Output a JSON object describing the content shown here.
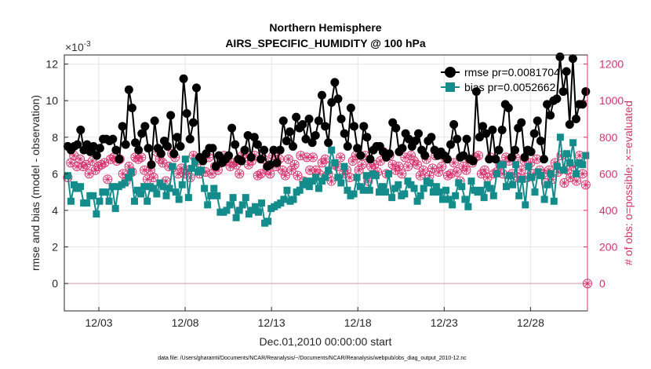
{
  "chart_data": {
    "type": "line",
    "title": "Northern Hemisphere",
    "subtitle": "AIRS_SPECIFIC_HUMIDITY @ 100 hPa",
    "xlabel": "Dec.01,2010 00:00:00 start",
    "ylabel_left": "rmse and bias (model - observation)",
    "ylabel_right": "# of obs: o=possible; ×=evaluated",
    "y_exponent_label": "×10",
    "y_exponent_power": "-3",
    "footer": "data file: /Users/gharamti/Documents/NCAR/Reanalysis/~/Documents/NCAR/Reanalysis/webpub/obs_diag_output_2010-12.nc",
    "x_tick_labels": [
      "12/03",
      "12/08",
      "12/13",
      "12/18",
      "12/23",
      "12/28"
    ],
    "x_tick_days": [
      3,
      8,
      13,
      18,
      23,
      28
    ],
    "xlim_days": [
      1.0,
      31.3
    ],
    "y_left_ticks": [
      "0",
      "2",
      "4",
      "6",
      "8",
      "10",
      "12"
    ],
    "y_left_tick_values": [
      0,
      2,
      4,
      6,
      8,
      10,
      12
    ],
    "ylim_left": [
      -1.5,
      12.5
    ],
    "y_right_ticks": [
      "0",
      "200",
      "400",
      "600",
      "800",
      "1000",
      "1200"
    ],
    "y_right_tick_values": [
      0,
      200,
      400,
      600,
      800,
      1000,
      1200
    ],
    "ylim_right": [
      -150,
      1250
    ],
    "legend_location": "top-right",
    "colors": {
      "rmse": "#000000",
      "bias": "#148c8c",
      "obs": "#d6336c",
      "zero_line": "#d0a5ad",
      "right_axis": "#d6336c"
    },
    "legend": [
      {
        "key": "rmse",
        "label": "rmse pr=0.0081704"
      },
      {
        "key": "bias",
        "label": "bias pr=0.0052662"
      }
    ],
    "series": [
      {
        "name": "rmse",
        "units": "x1e-3",
        "values": [
          7.5,
          7.3,
          7.5,
          7.6,
          8.4,
          7.3,
          7.6,
          7.2,
          7.5,
          7.0,
          7.4,
          7.9,
          7.9,
          7.8,
          7.9,
          7.3,
          6.8,
          8.6,
          7.6,
          10.6,
          9.6,
          7.7,
          7.3,
          8.2,
          8.6,
          7.4,
          6.5,
          8.9,
          7.4,
          7.1,
          7.8,
          7.5,
          9.2,
          7.1,
          8.0,
          7.5,
          11.2,
          9.3,
          7.9,
          8.8,
          10.7,
          6.9,
          6.7,
          7.1,
          7.4,
          7.4,
          6.4,
          7.0,
          6.6,
          6.8,
          7.0,
          8.5,
          7.6,
          6.8,
          6.7,
          7.3,
          8.1,
          6.9,
          8.0,
          7.6,
          6.8,
          7.3,
          6.4,
          6.5,
          7.3,
          6.6,
          7.3,
          8.9,
          7.8,
          8.3,
          7.5,
          9.1,
          8.5,
          8.7,
          7.9,
          9.0,
          7.7,
          8.1,
          8.9,
          10.3,
          8.6,
          7.7,
          9.9,
          11.0,
          10.1,
          9.0,
          8.2,
          7.5,
          9.6,
          8.6,
          7.4,
          7.0,
          8.6,
          8.0,
          6.8,
          7.3,
          7.5,
          7.5,
          7.2,
          6.9,
          7.1,
          8.8,
          8.5,
          7.2,
          7.4,
          8.2,
          7.9,
          7.5,
          7.8,
          8.2,
          7.3,
          7.0,
          7.8,
          8.0,
          7.3,
          7.0,
          7.2,
          7.0,
          6.8,
          7.6,
          8.7,
          7.9,
          6.9,
          7.0,
          7.9,
          6.8,
          6.7,
          10.5,
          8.0,
          8.6,
          8.2,
          6.8,
          8.4,
          6.8,
          7.3,
          8.4,
          9.8,
          9.6,
          6.9,
          7.3,
          8.5,
          8.8,
          6.9,
          7.3,
          7.2,
          8.2,
          8.9,
          7.8,
          6.8,
          9.8,
          9.2,
          10.0,
          10.1,
          12.4,
          10.5,
          11.6,
          8.7,
          12.3,
          9.0,
          9.8,
          9.8,
          10.5
        ],
        "note": "visible cap near 10.0 on day 31"
      },
      {
        "name": "bias",
        "units": "x1e-3",
        "values": [
          5.9,
          4.5,
          5.4,
          5.2,
          5.3,
          4.4,
          4.4,
          4.8,
          4.8,
          3.8,
          4.5,
          5.0,
          5.0,
          4.5,
          5.3,
          4.1,
          5.3,
          5.4,
          5.5,
          5.8,
          6.1,
          4.5,
          5.1,
          4.9,
          5.3,
          4.5,
          5.3,
          5.2,
          4.9,
          5.5,
          5.3,
          4.8,
          5.2,
          6.4,
          5.0,
          4.6,
          5.4,
          6.8,
          4.7,
          6.3,
          6.7,
          6.1,
          6.2,
          5.2,
          4.3,
          4.8,
          5.2,
          4.8,
          3.9,
          3.9,
          4.0,
          4.3,
          4.7,
          3.6,
          4.0,
          4.3,
          4.7,
          3.8,
          4.0,
          4.2,
          3.9,
          4.4,
          3.3,
          3.4,
          4.1,
          4.2,
          4.3,
          4.4,
          4.6,
          5.1,
          4.5,
          4.6,
          5.0,
          5.1,
          5.4,
          5.6,
          5.3,
          5.6,
          5.8,
          5.2,
          5.6,
          5.8,
          6.2,
          7.3,
          6.6,
          5.8,
          5.5,
          6.4,
          5.1,
          4.8,
          4.9,
          5.8,
          5.3,
          5.1,
          5.9,
          5.1,
          6.0,
          5.9,
          5.0,
          5.3,
          5.0,
          6.0,
          4.7,
          5.2,
          5.4,
          4.8,
          4.9,
          5.6,
          5.4,
          5.2,
          4.5,
          4.8,
          5.2,
          5.6,
          5.5,
          5.0,
          5.3,
          5.0,
          4.6,
          5.1,
          4.6,
          4.3,
          4.8,
          5.5,
          5.3,
          4.6,
          4.2,
          5.6,
          5.1,
          5.0,
          5.1,
          4.7,
          5.4,
          5.2,
          4.8,
          6.0,
          6.5,
          6.5,
          5.3,
          5.9,
          5.4,
          6.5,
          4.8,
          5.7,
          4.3,
          6.4,
          5.8,
          5.0,
          6.1,
          5.9,
          4.6,
          5.4,
          6.0,
          4.5,
          6.4,
          8.0,
          6.2,
          7.1,
          6.6,
          7.7,
          6.0,
          6.6,
          6.5,
          7.0
        ]
      },
      {
        "name": "obs_possible",
        "units": "count",
        "values": [
          580,
          660,
          700,
          640,
          680,
          640,
          650,
          600,
          670,
          620,
          640,
          650,
          660,
          570,
          680,
          690,
          670,
          680,
          600,
          560,
          640,
          610,
          690,
          680,
          690,
          620,
          570,
          620,
          580,
          720,
          680,
          660,
          560,
          640,
          710,
          690,
          600,
          630,
          600,
          620,
          580,
          700,
          650,
          600,
          680,
          610,
          690,
          600,
          640,
          620,
          680,
          700,
          670,
          640,
          660,
          650,
          600,
          700,
          710,
          650,
          670,
          700,
          590,
          600,
          680,
          620,
          600,
          700,
          640,
          680,
          620,
          590,
          680,
          620,
          650,
          590,
          700,
          560,
          690,
          620,
          690,
          620,
          600,
          660,
          680,
          600,
          560,
          650,
          640,
          690,
          600,
          620,
          580,
          670,
          700,
          620,
          650,
          700,
          560,
          640,
          650,
          610,
          670,
          720,
          600,
          700,
          650,
          620,
          640,
          600,
          690,
          640,
          700,
          670,
          650,
          590,
          620,
          680,
          590,
          630,
          700,
          610,
          640,
          690,
          590,
          600,
          660,
          610,
          560,
          640,
          620,
          680,
          660,
          690,
          700,
          600,
          620,
          580,
          690,
          600,
          610,
          650,
          600,
          690,
          670,
          600,
          690,
          580,
          620,
          670,
          580,
          660,
          600,
          680,
          620,
          600,
          550,
          620,
          570,
          660,
          610,
          700,
          550,
          620,
          580,
          640,
          560,
          700,
          600,
          540
        ]
      },
      {
        "name": "obs_evaluated",
        "units": "count",
        "values": [
          580,
          660,
          700,
          640,
          680,
          640,
          650,
          600,
          670,
          620,
          640,
          650,
          660,
          570,
          680,
          690,
          670,
          680,
          600,
          560,
          640,
          610,
          690,
          680,
          690,
          620,
          570,
          620,
          580,
          720,
          680,
          660,
          560,
          640,
          710,
          690,
          600,
          630,
          600,
          620,
          580,
          700,
          650,
          600,
          680,
          610,
          690,
          600,
          640,
          620,
          680,
          700,
          670,
          640,
          660,
          650,
          600,
          700,
          710,
          650,
          670,
          700,
          590,
          600,
          680,
          620,
          600,
          700,
          640,
          680,
          620,
          590,
          680,
          620,
          650,
          590,
          700,
          560,
          690,
          620,
          690,
          620,
          600,
          660,
          680,
          600,
          560,
          650,
          640,
          690,
          600,
          620,
          580,
          670,
          700,
          620,
          650,
          700,
          560,
          640,
          650,
          610,
          670,
          720,
          600,
          700,
          650,
          620,
          640,
          600,
          690,
          640,
          700,
          670,
          650,
          590,
          620,
          680,
          590,
          630,
          700,
          610,
          640,
          690,
          590,
          600,
          660,
          610,
          560,
          640,
          620,
          680,
          660,
          690,
          700,
          600,
          620,
          580,
          690,
          600,
          610,
          650,
          600,
          690,
          670,
          600,
          690,
          580,
          620,
          670,
          580,
          660,
          600,
          680,
          620,
          600,
          550,
          620,
          570,
          660,
          610,
          700,
          550,
          620,
          580,
          640,
          560,
          700,
          600,
          540
        ],
        "extra_point": {
          "day": 31.3,
          "value": 0
        }
      }
    ]
  }
}
